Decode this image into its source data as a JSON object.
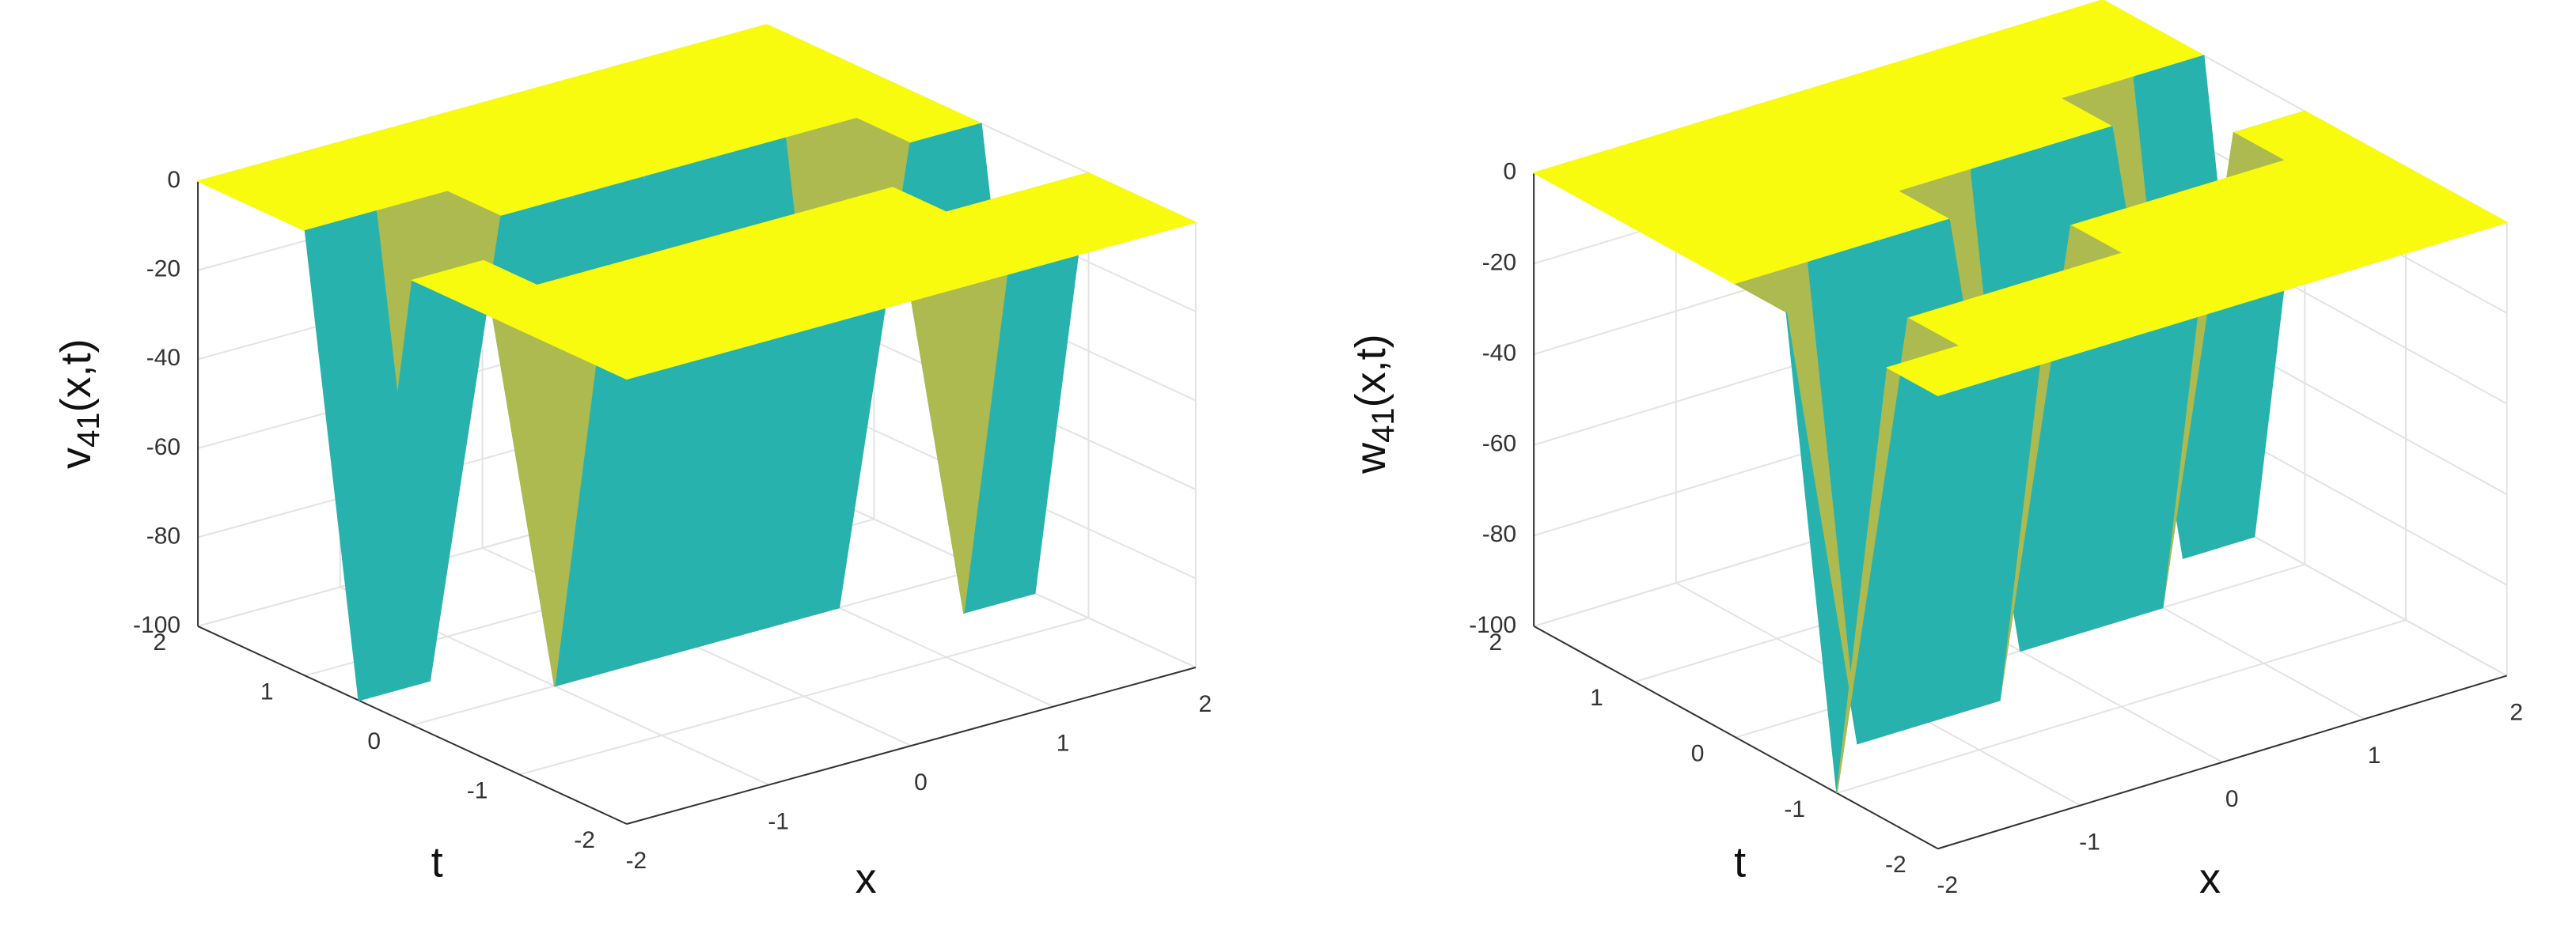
{
  "chart_data": [
    {
      "type": "surface",
      "colormap": "parula",
      "grid": true,
      "xlabel": "x",
      "ylabel": "t",
      "zlabel": [
        "v",
        "41",
        "(x,t)"
      ],
      "x": [
        -2,
        -1.5,
        -1,
        -0.5,
        0,
        0.5,
        1,
        1.5,
        2
      ],
      "y": [
        -2,
        -1.5,
        -1,
        -0.5,
        0,
        0.5,
        1,
        1.5,
        2
      ],
      "z": [
        [
          0,
          0,
          0,
          0,
          0,
          0,
          0,
          0,
          0
        ],
        [
          0,
          0,
          0,
          0,
          0,
          0,
          0,
          0,
          0
        ],
        [
          0,
          0,
          0,
          0,
          0,
          0,
          0,
          0,
          0
        ],
        [
          0,
          0,
          0,
          0,
          0,
          0,
          0,
          -100,
          -100
        ],
        [
          0,
          0,
          -100,
          -100,
          -100,
          -100,
          -100,
          0,
          0
        ],
        [
          -100,
          -100,
          0,
          0,
          0,
          0,
          0,
          0,
          0
        ],
        [
          0,
          0,
          0,
          0,
          0,
          0,
          0,
          0,
          0
        ],
        [
          0,
          0,
          0,
          0,
          0,
          0,
          0,
          0,
          0
        ],
        [
          0,
          0,
          0,
          0,
          0,
          0,
          0,
          0,
          0
        ]
      ],
      "xlim": [
        -2,
        2
      ],
      "ylim": [
        -2,
        2
      ],
      "zlim": [
        -100,
        0
      ],
      "xticks": [
        -2,
        -1,
        0,
        1,
        2
      ],
      "yticks": [
        -2,
        -1,
        0,
        1,
        2
      ],
      "zticks": [
        -100,
        -80,
        -60,
        -40,
        -20,
        0
      ]
    },
    {
      "type": "surface",
      "colormap": "parula",
      "grid": true,
      "xlabel": "x",
      "ylabel": "t",
      "zlabel": [
        "w",
        "41",
        "(x,t)"
      ],
      "x": [
        -2,
        -1.5,
        -1,
        -0.5,
        0,
        0.5,
        1,
        1.5,
        2
      ],
      "y": [
        -2,
        -1.5,
        -1,
        -0.5,
        0,
        0.5,
        1,
        1.5,
        2
      ],
      "z": [
        [
          0,
          0,
          0,
          0,
          0,
          0,
          0,
          0,
          0
        ],
        [
          0,
          0,
          0,
          0,
          0,
          0,
          0,
          0,
          0
        ],
        [
          -100,
          0,
          0,
          0,
          0,
          0,
          0,
          0,
          0
        ],
        [
          0,
          -100,
          -100,
          -100,
          0,
          0,
          0,
          0,
          0
        ],
        [
          0,
          0,
          0,
          0,
          -100,
          -100,
          -100,
          0,
          0
        ],
        [
          0,
          0,
          0,
          0,
          0,
          0,
          0,
          -100,
          -100
        ],
        [
          0,
          0,
          0,
          0,
          0,
          0,
          0,
          0,
          0
        ],
        [
          0,
          0,
          0,
          0,
          0,
          0,
          0,
          0,
          0
        ],
        [
          0,
          0,
          0,
          0,
          0,
          0,
          0,
          0,
          0
        ]
      ],
      "xlim": [
        -2,
        2
      ],
      "ylim": [
        -2,
        2
      ],
      "zlim": [
        -100,
        0
      ],
      "xticks": [
        -2,
        -1,
        0,
        1,
        2
      ],
      "yticks": [
        -2,
        -1,
        0,
        1,
        2
      ],
      "zticks": [
        -100,
        -80,
        -60,
        -40,
        -20,
        0
      ]
    }
  ]
}
